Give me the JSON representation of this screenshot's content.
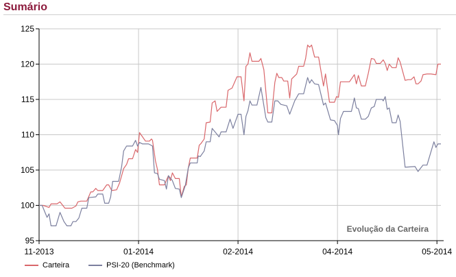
{
  "header": {
    "title": "Sumário"
  },
  "chart_data": {
    "type": "line",
    "title": "",
    "annotation": "Evolução da Carteira",
    "xlabel": "",
    "ylabel": "",
    "ylim": [
      95,
      125
    ],
    "yticks": [
      95,
      100,
      105,
      110,
      115,
      120,
      125
    ],
    "xlim": [
      0,
      40.4
    ],
    "xticks": [
      {
        "value": 0,
        "label": "11-2013"
      },
      {
        "value": 10,
        "label": "01-2014"
      },
      {
        "value": 20,
        "label": "02-2014"
      },
      {
        "value": 30,
        "label": "04-2014"
      },
      {
        "value": 40,
        "label": "05-2014"
      }
    ],
    "grid": true,
    "legend_position": "bottom-left",
    "series": [
      {
        "name": "Carteira",
        "color": "#d9666a",
        "points": [
          [
            0,
            100
          ],
          [
            0.4,
            100
          ],
          [
            1.0,
            99.7
          ],
          [
            1.2,
            100.2
          ],
          [
            1.8,
            100.2
          ],
          [
            2.1,
            100.5
          ],
          [
            2.6,
            99.6
          ],
          [
            3.3,
            99.6
          ],
          [
            3.7,
            99.9
          ],
          [
            3.9,
            100.5
          ],
          [
            4.2,
            100.6
          ],
          [
            4.8,
            100.6
          ],
          [
            5.2,
            101.9
          ],
          [
            5.4,
            101.9
          ],
          [
            5.7,
            102.4
          ],
          [
            5.9,
            102.1
          ],
          [
            6.4,
            102.1
          ],
          [
            6.8,
            102.9
          ],
          [
            7.0,
            102.9
          ],
          [
            7.3,
            102.1
          ],
          [
            7.8,
            102.2
          ],
          [
            8.1,
            103.2
          ],
          [
            8.5,
            105.2
          ],
          [
            8.8,
            105.8
          ],
          [
            9.0,
            106.6
          ],
          [
            9.4,
            106.6
          ],
          [
            9.7,
            107.9
          ],
          [
            9.9,
            107.5
          ],
          [
            10.1,
            110.3
          ],
          [
            10.7,
            109.1
          ],
          [
            11.1,
            109.1
          ],
          [
            11.3,
            109.4
          ],
          [
            11.4,
            109.2
          ],
          [
            11.7,
            106.3
          ],
          [
            11.9,
            105.1
          ],
          [
            12.1,
            102.9
          ],
          [
            12.6,
            102.9
          ],
          [
            13.0,
            104.2
          ],
          [
            13.2,
            103.5
          ],
          [
            13.4,
            104.6
          ],
          [
            13.7,
            103.8
          ],
          [
            14.1,
            103.8
          ],
          [
            14.3,
            101.2
          ],
          [
            14.6,
            102.7
          ],
          [
            14.8,
            102.9
          ],
          [
            15.0,
            105.3
          ],
          [
            15.2,
            106.7
          ],
          [
            15.9,
            106.7
          ],
          [
            16.1,
            108.5
          ],
          [
            16.3,
            108.8
          ],
          [
            16.6,
            109.4
          ],
          [
            16.8,
            111.7
          ],
          [
            17.2,
            111.8
          ],
          [
            17.4,
            114.5
          ],
          [
            17.7,
            114.8
          ],
          [
            17.9,
            113.3
          ],
          [
            18.3,
            113.9
          ],
          [
            18.8,
            113.9
          ],
          [
            19.0,
            116.3
          ],
          [
            19.4,
            116.6
          ],
          [
            19.9,
            118.2
          ],
          [
            20.3,
            118.2
          ],
          [
            20.6,
            114.8
          ],
          [
            20.8,
            119.7
          ],
          [
            21.0,
            120.0
          ],
          [
            21.2,
            121.6
          ],
          [
            21.4,
            120.4
          ],
          [
            22.1,
            120.4
          ],
          [
            22.3,
            120.8
          ],
          [
            22.6,
            119.2
          ],
          [
            23.0,
            113.1
          ],
          [
            23.4,
            113.1
          ],
          [
            23.7,
            117.4
          ],
          [
            23.9,
            118.7
          ],
          [
            24.1,
            118.1
          ],
          [
            24.4,
            118.1
          ],
          [
            24.6,
            117.6
          ],
          [
            25.0,
            117.6
          ],
          [
            25.2,
            115.2
          ],
          [
            25.4,
            117.9
          ],
          [
            25.9,
            118.6
          ],
          [
            26.1,
            119.7
          ],
          [
            26.6,
            119.7
          ],
          [
            26.8,
            120.8
          ],
          [
            27.0,
            122.7
          ],
          [
            27.2,
            122.4
          ],
          [
            27.4,
            122.7
          ],
          [
            27.7,
            121.0
          ],
          [
            28.1,
            121.0
          ],
          [
            28.6,
            116.9
          ],
          [
            28.8,
            118.6
          ],
          [
            29.2,
            114.6
          ],
          [
            29.7,
            114.6
          ],
          [
            29.9,
            115.4
          ],
          [
            30.1,
            115.3
          ],
          [
            30.3,
            117.5
          ],
          [
            31.2,
            117.5
          ],
          [
            31.7,
            118.5
          ],
          [
            31.9,
            117.2
          ],
          [
            32.1,
            118.4
          ],
          [
            32.4,
            116.9
          ],
          [
            32.8,
            116.9
          ],
          [
            33.1,
            118.7
          ],
          [
            33.4,
            120.8
          ],
          [
            33.7,
            120.7
          ],
          [
            33.9,
            120.1
          ],
          [
            34.3,
            120.1
          ],
          [
            34.6,
            120.6
          ],
          [
            34.8,
            120.1
          ],
          [
            35.0,
            119.1
          ],
          [
            35.2,
            120.0
          ],
          [
            35.5,
            119.5
          ],
          [
            35.9,
            119.5
          ],
          [
            36.1,
            120.9
          ],
          [
            36.3,
            120.3
          ],
          [
            36.8,
            117.7
          ],
          [
            37.1,
            117.8
          ],
          [
            37.4,
            117.8
          ],
          [
            37.7,
            118.2
          ],
          [
            37.9,
            117.2
          ],
          [
            38.1,
            117.2
          ],
          [
            38.4,
            117.6
          ],
          [
            38.6,
            118.5
          ],
          [
            39.0,
            118.6
          ],
          [
            39.4,
            118.6
          ],
          [
            39.9,
            118.5
          ],
          [
            40.1,
            120.0
          ],
          [
            40.4,
            120.0
          ]
        ]
      },
      {
        "name": "PSI-20 (Benchmark)",
        "color": "#7b7f9e",
        "points": [
          [
            0,
            100
          ],
          [
            0.3,
            100
          ],
          [
            0.8,
            98.3
          ],
          [
            1.0,
            98.8
          ],
          [
            1.2,
            97.1
          ],
          [
            1.7,
            97.1
          ],
          [
            2.1,
            99.0
          ],
          [
            2.5,
            97.7
          ],
          [
            2.8,
            97.1
          ],
          [
            3.2,
            97.1
          ],
          [
            3.4,
            97.7
          ],
          [
            3.7,
            97.7
          ],
          [
            4.0,
            98.2
          ],
          [
            4.3,
            99.6
          ],
          [
            4.8,
            99.6
          ],
          [
            5.0,
            101.1
          ],
          [
            5.7,
            101.2
          ],
          [
            5.9,
            101.6
          ],
          [
            6.4,
            101.6
          ],
          [
            6.6,
            100.3
          ],
          [
            7.0,
            100.3
          ],
          [
            7.2,
            101.2
          ],
          [
            7.4,
            103.4
          ],
          [
            8.0,
            103.4
          ],
          [
            8.3,
            105.5
          ],
          [
            8.5,
            107.7
          ],
          [
            8.8,
            108.4
          ],
          [
            9.4,
            108.4
          ],
          [
            9.7,
            109.2
          ],
          [
            9.9,
            108.4
          ],
          [
            10.1,
            108.9
          ],
          [
            10.4,
            108.7
          ],
          [
            11.0,
            108.7
          ],
          [
            11.4,
            108.4
          ],
          [
            11.6,
            104.6
          ],
          [
            11.9,
            104.5
          ],
          [
            12.1,
            103.7
          ],
          [
            12.6,
            103.5
          ],
          [
            12.8,
            102.3
          ],
          [
            13.0,
            104.2
          ],
          [
            13.4,
            103.5
          ],
          [
            13.7,
            102.4
          ],
          [
            14.1,
            102.3
          ],
          [
            14.3,
            101.1
          ],
          [
            14.7,
            102.8
          ],
          [
            15.0,
            105.3
          ],
          [
            15.2,
            106.0
          ],
          [
            15.9,
            106.0
          ],
          [
            16.0,
            107.0
          ],
          [
            16.2,
            106.9
          ],
          [
            16.6,
            107.7
          ],
          [
            16.8,
            109.0
          ],
          [
            17.2,
            109.0
          ],
          [
            17.4,
            110.9
          ],
          [
            18.1,
            109.7
          ],
          [
            18.3,
            110.4
          ],
          [
            18.8,
            110.4
          ],
          [
            19.2,
            112.2
          ],
          [
            19.5,
            110.9
          ],
          [
            20.0,
            112.9
          ],
          [
            20.3,
            112.9
          ],
          [
            20.6,
            110.0
          ],
          [
            20.8,
            112.6
          ],
          [
            21.0,
            113.4
          ],
          [
            21.2,
            114.8
          ],
          [
            21.4,
            114.2
          ],
          [
            21.9,
            114.2
          ],
          [
            22.3,
            116.7
          ],
          [
            22.8,
            112.4
          ],
          [
            23.0,
            111.8
          ],
          [
            23.4,
            111.8
          ],
          [
            23.7,
            114.8
          ],
          [
            24.0,
            114.8
          ],
          [
            24.3,
            114.3
          ],
          [
            24.9,
            114.1
          ],
          [
            25.2,
            112.9
          ],
          [
            25.7,
            114.8
          ],
          [
            26.1,
            115.8
          ],
          [
            26.6,
            115.8
          ],
          [
            27.0,
            118.1
          ],
          [
            27.2,
            117.3
          ],
          [
            27.4,
            117.8
          ],
          [
            27.7,
            117.2
          ],
          [
            28.1,
            117.1
          ],
          [
            28.6,
            114.2
          ],
          [
            28.8,
            114.5
          ],
          [
            29.3,
            112.1
          ],
          [
            29.7,
            112.0
          ],
          [
            30.0,
            111.3
          ],
          [
            30.1,
            110.0
          ],
          [
            30.3,
            112.3
          ],
          [
            30.6,
            113.3
          ],
          [
            31.4,
            113.3
          ],
          [
            31.7,
            115.2
          ],
          [
            31.9,
            113.8
          ],
          [
            32.1,
            113.7
          ],
          [
            32.4,
            112.2
          ],
          [
            32.8,
            112.2
          ],
          [
            33.1,
            112.6
          ],
          [
            33.4,
            113.8
          ],
          [
            33.7,
            114.0
          ],
          [
            33.9,
            115.0
          ],
          [
            34.5,
            115.0
          ],
          [
            34.6,
            114.8
          ],
          [
            34.8,
            115.4
          ],
          [
            35.0,
            113.6
          ],
          [
            35.2,
            113.8
          ],
          [
            35.5,
            111.7
          ],
          [
            35.9,
            111.7
          ],
          [
            36.1,
            112.8
          ],
          [
            36.3,
            111.9
          ],
          [
            36.8,
            105.4
          ],
          [
            37.8,
            105.5
          ],
          [
            38.1,
            104.8
          ],
          [
            38.6,
            105.7
          ],
          [
            39.0,
            105.7
          ],
          [
            39.7,
            109.0
          ],
          [
            39.9,
            108.2
          ],
          [
            40.1,
            108.7
          ],
          [
            40.4,
            108.7
          ]
        ]
      }
    ]
  }
}
